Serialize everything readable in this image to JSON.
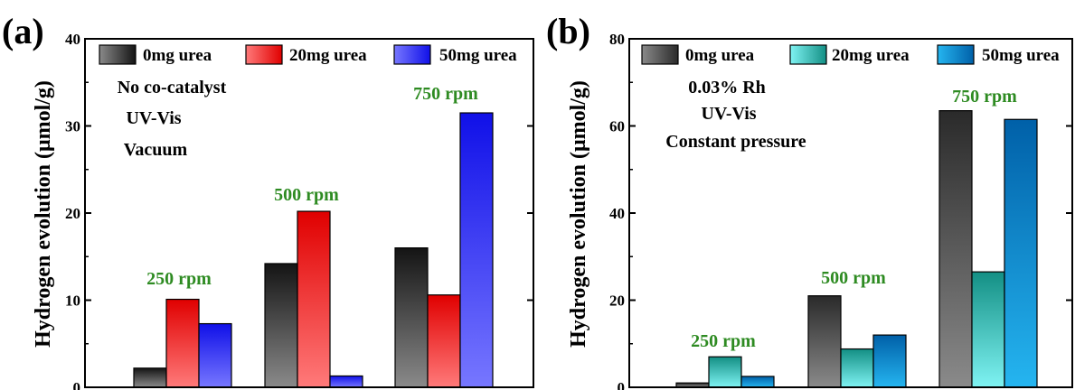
{
  "colors": {
    "axis": "#000000",
    "annotation": "#2e8b22",
    "panel_a": {
      "0mg urea": [
        "#8a8a8a",
        "#141414"
      ],
      "20mg urea": [
        "#ff7a7a",
        "#e00000"
      ],
      "50mg urea": [
        "#7777ff",
        "#1010e8"
      ]
    },
    "panel_b": {
      "0mg urea": [
        "#8a8a8a",
        "#2a2a2a"
      ],
      "20mg urea": [
        "#7ff3f3",
        "#138f84"
      ],
      "50mg urea": [
        "#25b5f0",
        "#0060a8"
      ]
    }
  },
  "chart_data": [
    {
      "type": "bar",
      "panel_label": "(a)",
      "ylabel": "Hydrogen evolution (μmol/g)",
      "xlabel": "",
      "ylim": [
        0,
        40
      ],
      "yticks": [
        0,
        10,
        20,
        30,
        40
      ],
      "categories": [
        "250 rpm",
        "500 rpm",
        "750 rpm"
      ],
      "series": [
        {
          "name": "0mg urea",
          "values": [
            2.2,
            14.2,
            16.0
          ]
        },
        {
          "name": "20mg urea",
          "values": [
            10.1,
            20.2,
            10.6
          ]
        },
        {
          "name": "50mg urea",
          "values": [
            7.3,
            1.3,
            31.5
          ]
        }
      ],
      "conditions": [
        "No co-catalyst",
        "UV-Vis",
        "Vacuum"
      ],
      "legend_position": "top",
      "grid": false
    },
    {
      "type": "bar",
      "panel_label": "(b)",
      "ylabel": "Hydrogen evolution (μmol/g)",
      "xlabel": "",
      "ylim": [
        0,
        80
      ],
      "yticks": [
        0,
        20,
        40,
        60,
        80
      ],
      "categories": [
        "250 rpm",
        "500 rpm",
        "750 rpm"
      ],
      "series": [
        {
          "name": "0mg urea",
          "values": [
            1.0,
            21.0,
            63.5
          ]
        },
        {
          "name": "20mg urea",
          "values": [
            7.0,
            8.8,
            26.5
          ]
        },
        {
          "name": "50mg urea",
          "values": [
            2.5,
            12.0,
            61.5
          ]
        }
      ],
      "conditions": [
        "0.03% Rh",
        "UV-Vis",
        "Constant pressure"
      ],
      "legend_position": "top",
      "grid": false
    }
  ]
}
